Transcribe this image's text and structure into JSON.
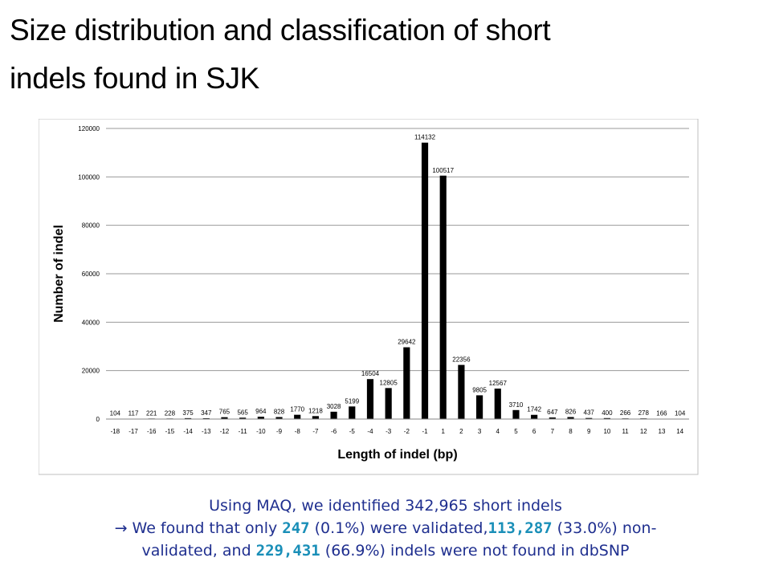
{
  "slide": {
    "title_line1": "Size distribution and classification of short",
    "title_line2": "indels found in SJK"
  },
  "caption": {
    "line1": "Using MAQ, we identified 342,965 short indels",
    "line2_arrow": "→",
    "line2_a": " We found that only ",
    "v1": "247",
    "line2_b": " (0.1%) were validated,",
    "v2": "113,287",
    "line2_c": " (33.0%) non-",
    "line3_a": "validated, and ",
    "v3": "229,431",
    "line3_b": " (66.9%) indels were not found in dbSNP"
  },
  "chart_data": {
    "type": "bar",
    "title": "",
    "xlabel": "Length of indel (bp)",
    "ylabel": "Number of indel",
    "ylim": [
      0,
      120000
    ],
    "yticks": [
      0,
      20000,
      40000,
      60000,
      80000,
      100000,
      120000
    ],
    "grid": true,
    "bar_color": "#000000",
    "categories": [
      "-18",
      "-17",
      "-16",
      "-15",
      "-14",
      "-13",
      "-12",
      "-11",
      "-10",
      "-9",
      "-8",
      "-7",
      "-6",
      "-5",
      "-4",
      "-3",
      "-2",
      "-1",
      "1",
      "2",
      "3",
      "4",
      "5",
      "6",
      "7",
      "8",
      "9",
      "10",
      "11",
      "12",
      "13",
      "14"
    ],
    "values": [
      104,
      117,
      221,
      228,
      375,
      347,
      765,
      565,
      964,
      828,
      1770,
      1218,
      3028,
      5199,
      16504,
      12805,
      29642,
      114132,
      100517,
      22356,
      9805,
      12567,
      3710,
      1742,
      647,
      826,
      437,
      400,
      266,
      278,
      166,
      104
    ]
  }
}
